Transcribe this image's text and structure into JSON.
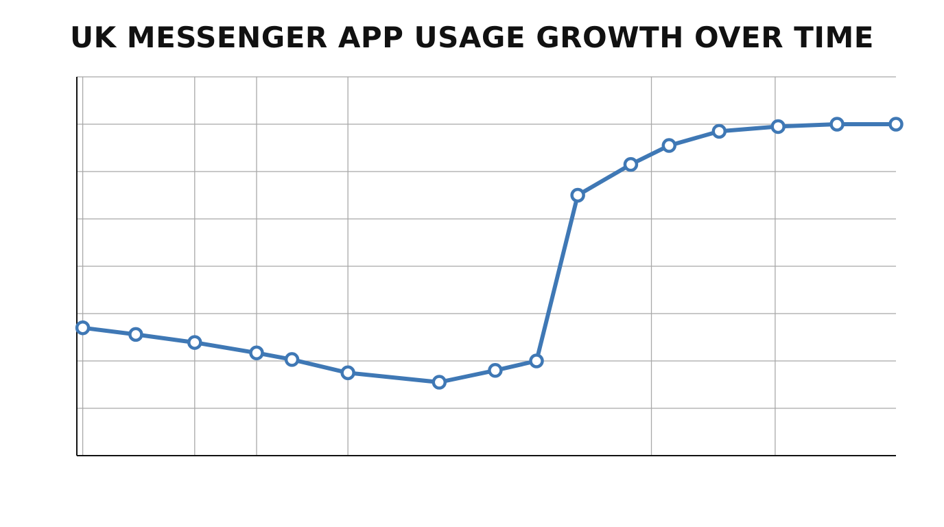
{
  "chart_data": {
    "type": "line",
    "title": "UK MESSENGER APP USAGE GROWTH OVER TIME",
    "xlabel": "",
    "ylabel": "",
    "x": [
      0,
      0.9,
      1.9,
      2.95,
      3.55,
      4.5,
      6.05,
      7.0,
      7.7,
      8.4,
      9.3,
      9.95,
      10.8,
      11.8,
      12.8,
      13.8
    ],
    "xlim": [
      -0.1,
      13.8
    ],
    "x_gridlines": [
      1.9,
      2.95,
      4.5,
      9.65,
      11.75
    ],
    "y": [
      2.7,
      2.56,
      2.39,
      2.17,
      2.03,
      1.75,
      1.55,
      1.8,
      2.0,
      5.5,
      6.15,
      6.55,
      6.85,
      6.95,
      7.0,
      7.0
    ],
    "ylim": [
      0,
      8
    ],
    "grid": true,
    "line_color": "#3f78b5",
    "marker_fill": "#ffffff",
    "grid_color": "#a8a8a8",
    "axis_color": "#111111"
  }
}
